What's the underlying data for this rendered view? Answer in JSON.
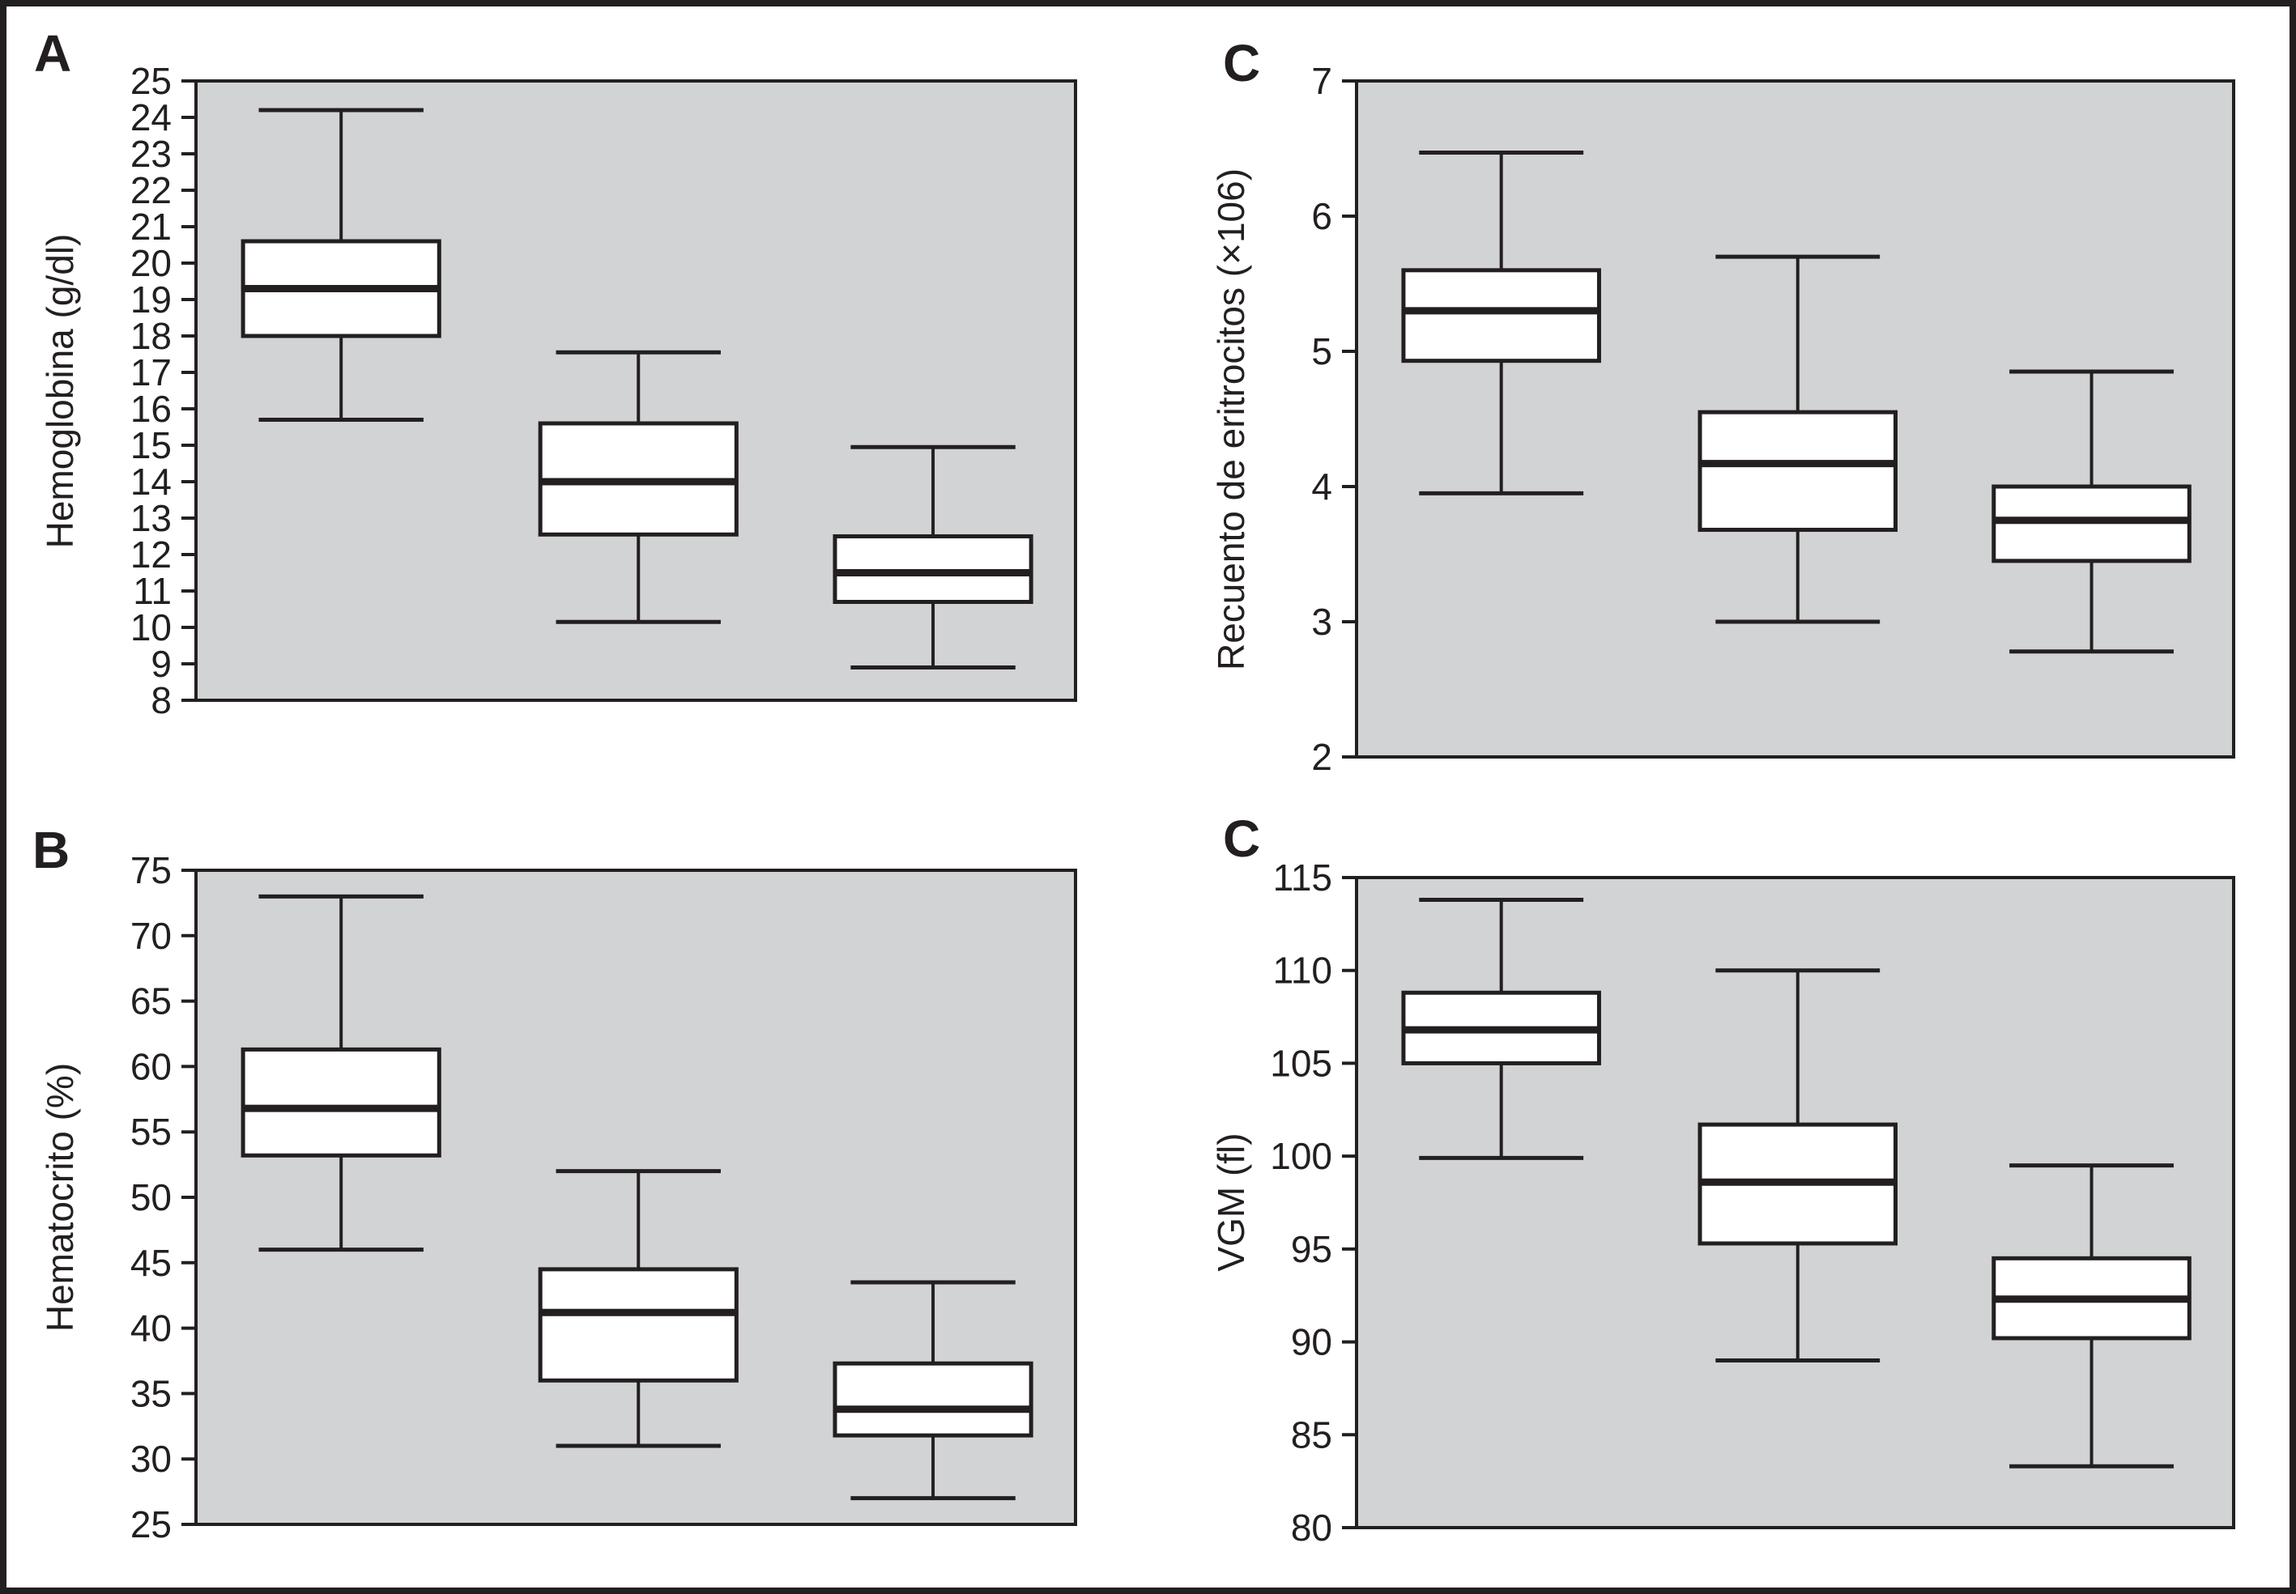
{
  "colors": {
    "plot_bg": "#d1d3d4",
    "line": "#231f20",
    "box_fill": "#ffffff",
    "page_bg": "#ffffff"
  },
  "chart_data": [
    {
      "type": "box",
      "panel_label": "A",
      "ylabel": "Hemoglobina (g/dl)",
      "ylim": [
        8,
        25
      ],
      "ytick_step": 1,
      "grid": false,
      "legend": false,
      "groups": [
        {
          "whisker_low": 15.7,
          "q1": 18.0,
          "median": 19.3,
          "q3": 20.6,
          "whisker_high": 24.2
        },
        {
          "whisker_low": 10.15,
          "q1": 12.55,
          "median": 14.0,
          "q3": 15.6,
          "whisker_high": 17.55
        },
        {
          "whisker_low": 8.9,
          "q1": 10.7,
          "median": 11.5,
          "q3": 12.5,
          "whisker_high": 14.95
        }
      ]
    },
    {
      "type": "box",
      "panel_label": "C",
      "ylabel": "Recuento de eritrocitos (×106)",
      "ylim": [
        2,
        7
      ],
      "ytick_step": 1,
      "grid": false,
      "legend": false,
      "groups": [
        {
          "whisker_low": 3.95,
          "q1": 4.93,
          "median": 5.3,
          "q3": 5.6,
          "whisker_high": 6.47
        },
        {
          "whisker_low": 3.0,
          "q1": 3.68,
          "median": 4.17,
          "q3": 4.55,
          "whisker_high": 5.7
        },
        {
          "whisker_low": 2.78,
          "q1": 3.45,
          "median": 3.75,
          "q3": 4.0,
          "whisker_high": 4.85
        }
      ]
    },
    {
      "type": "box",
      "panel_label": "B",
      "ylabel": "Hematocrito (%)",
      "ylim": [
        25,
        75
      ],
      "ytick_step": 5,
      "grid": false,
      "legend": false,
      "groups": [
        {
          "whisker_low": 46.0,
          "q1": 53.2,
          "median": 56.8,
          "q3": 61.3,
          "whisker_high": 73.0
        },
        {
          "whisker_low": 31.0,
          "q1": 36.0,
          "median": 41.2,
          "q3": 44.5,
          "whisker_high": 52.0
        },
        {
          "whisker_low": 27.0,
          "q1": 31.8,
          "median": 33.8,
          "q3": 37.3,
          "whisker_high": 43.5
        }
      ]
    },
    {
      "type": "box",
      "panel_label": "C",
      "ylabel": "VGM (fl)",
      "ylim": [
        80,
        115
      ],
      "ytick_step": 5,
      "grid": false,
      "legend": false,
      "groups": [
        {
          "whisker_low": 99.9,
          "q1": 105.0,
          "median": 106.8,
          "q3": 108.8,
          "whisker_high": 113.8
        },
        {
          "whisker_low": 89.0,
          "q1": 95.3,
          "median": 98.6,
          "q3": 101.7,
          "whisker_high": 110.0
        },
        {
          "whisker_low": 83.3,
          "q1": 90.2,
          "median": 92.3,
          "q3": 94.5,
          "whisker_high": 99.5
        }
      ]
    }
  ]
}
